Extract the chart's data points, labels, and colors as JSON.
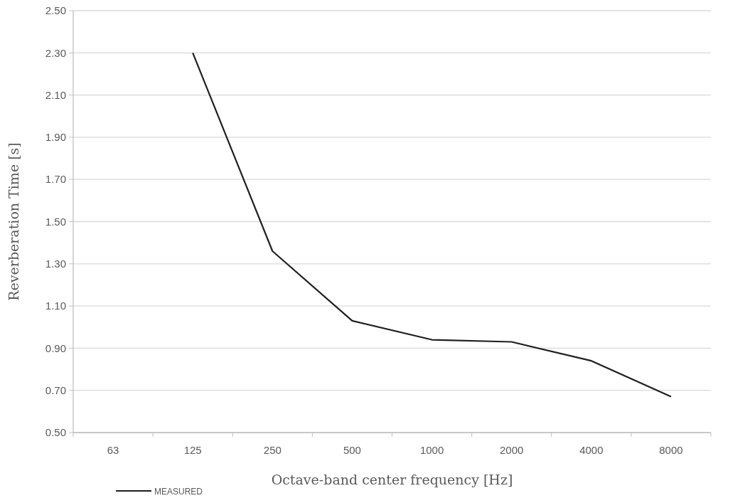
{
  "chart_data": {
    "type": "line",
    "xlabel": "Octave-band center frequency [Hz]",
    "ylabel": "Reverberation Time [s]",
    "categories": [
      "63",
      "125",
      "250",
      "500",
      "1000",
      "2000",
      "4000",
      "8000"
    ],
    "series": [
      {
        "name": "MEASURED",
        "color": "#1f1f1f",
        "values": [
          null,
          2.3,
          1.36,
          1.03,
          0.94,
          0.93,
          0.84,
          0.67
        ]
      }
    ],
    "ylim": [
      0.5,
      2.5
    ],
    "yticks": [
      {
        "value": 0.5,
        "label": "0.50"
      },
      {
        "value": 0.7,
        "label": "0.70"
      },
      {
        "value": 0.9,
        "label": "0.90"
      },
      {
        "value": 1.1,
        "label": "1.10"
      },
      {
        "value": 1.3,
        "label": "1.30"
      },
      {
        "value": 1.5,
        "label": "1.50"
      },
      {
        "value": 1.7,
        "label": "1.70"
      },
      {
        "value": 1.9,
        "label": "1.90"
      },
      {
        "value": 2.1,
        "label": "2.10"
      },
      {
        "value": 2.3,
        "label": "2.30"
      },
      {
        "value": 2.5,
        "label": "2.50"
      }
    ],
    "grid": "y",
    "legend": "bottom left",
    "marker": "none",
    "line_style": "solid"
  }
}
